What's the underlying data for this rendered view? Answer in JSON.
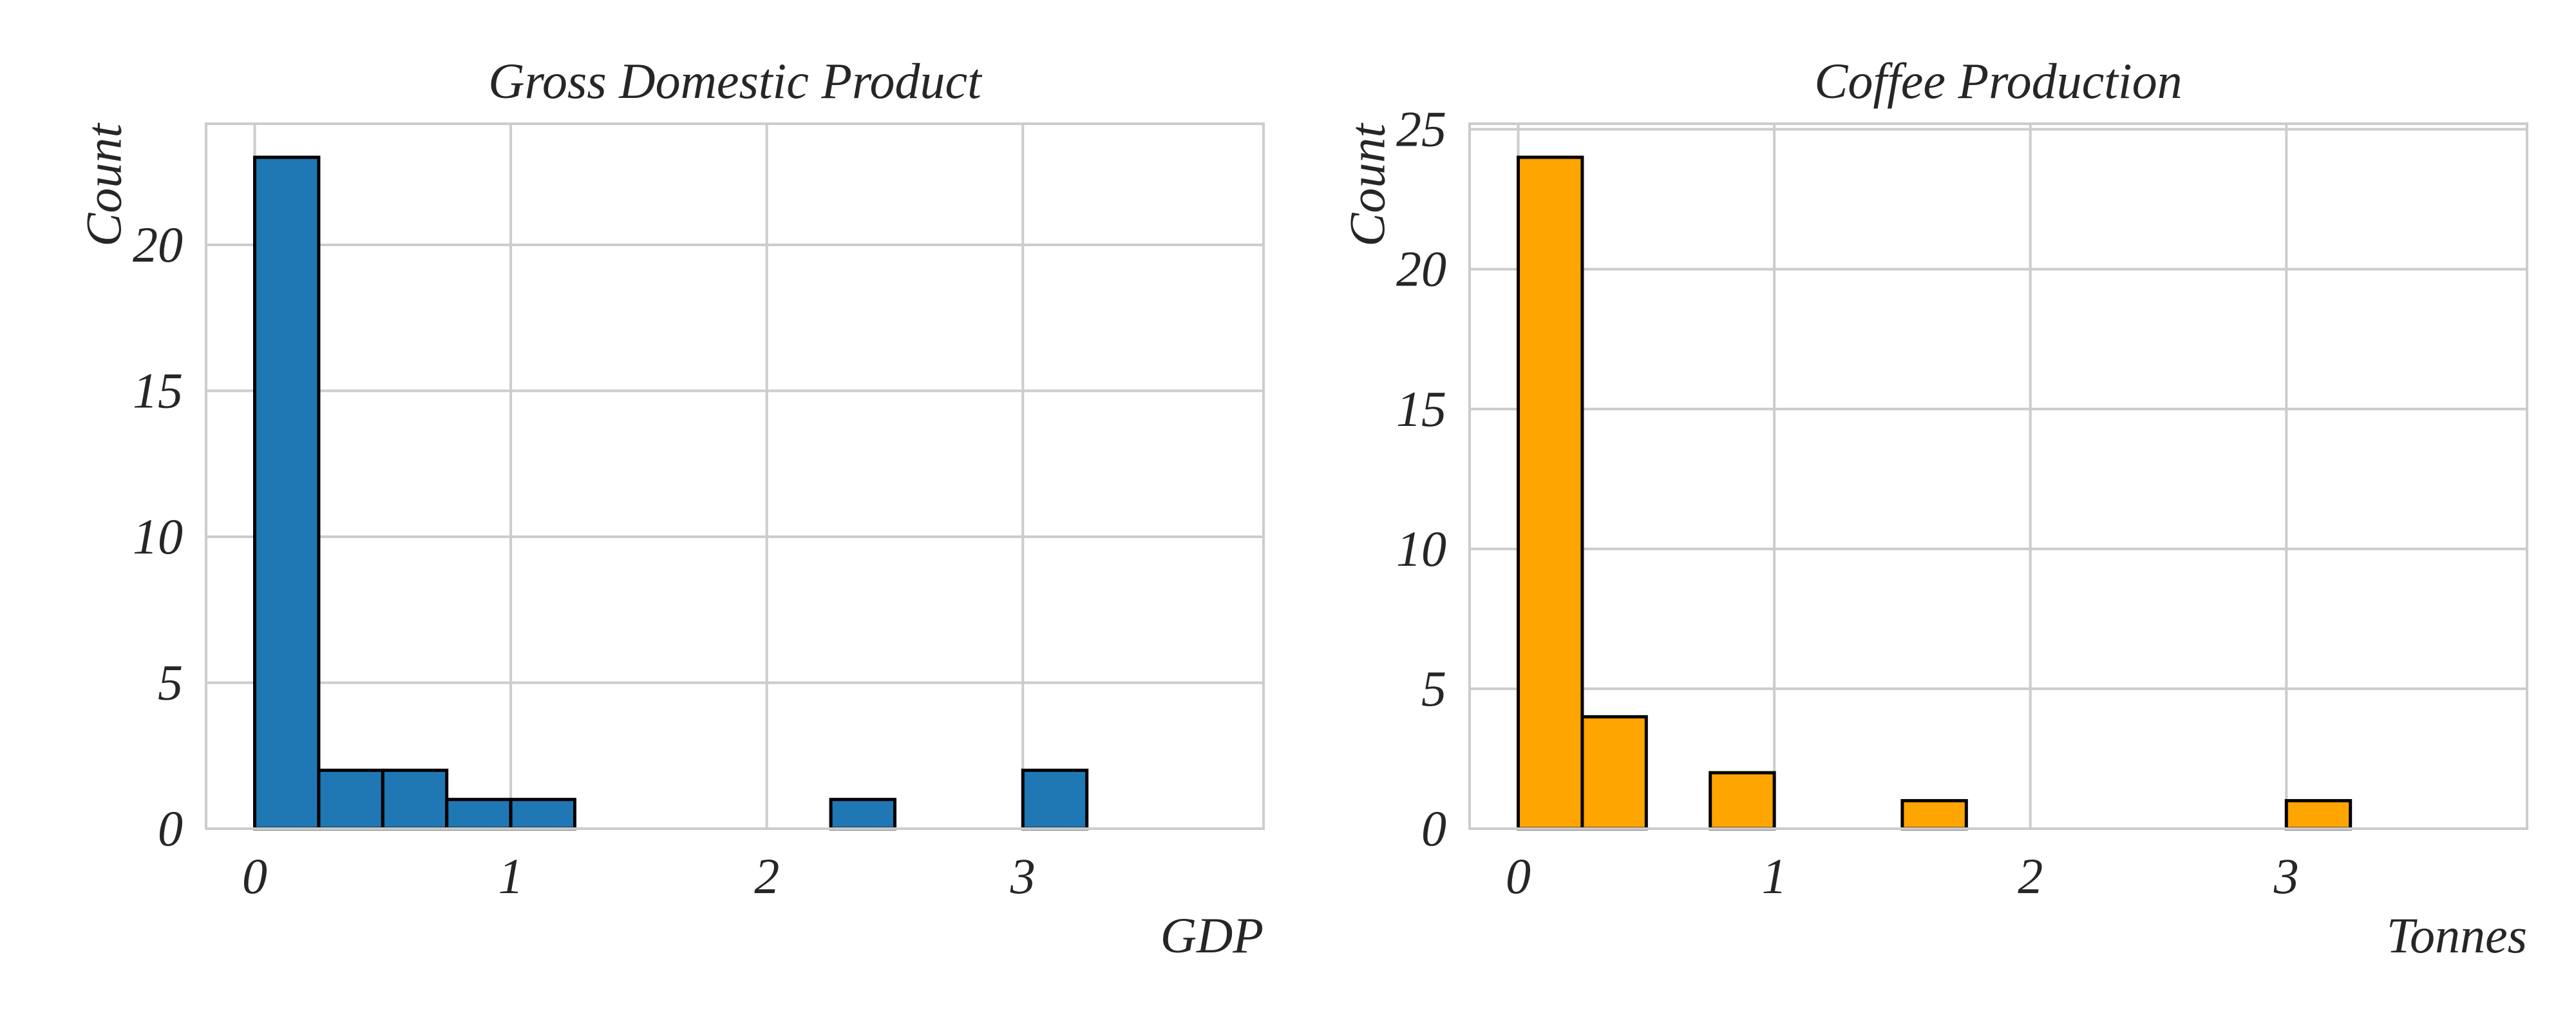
{
  "chart_data": [
    {
      "type": "bar",
      "title": "Gross Domestic Product",
      "xlabel": "GDP",
      "ylabel": "Count",
      "color": "#1f77b4",
      "bin_edges": [
        0,
        0.25,
        0.5,
        0.75,
        1.0,
        1.25,
        1.5,
        1.75,
        2.0,
        2.25,
        2.5,
        2.75,
        3.0,
        3.25,
        3.5,
        3.75
      ],
      "values": [
        23,
        2,
        2,
        1,
        1,
        0,
        0,
        0,
        0,
        1,
        0,
        0,
        2,
        0,
        0
      ],
      "xlim": [
        -0.19,
        3.94
      ],
      "ylim": [
        0,
        24.15
      ],
      "xticks": [
        0,
        1,
        2,
        3
      ],
      "yticks": [
        0,
        5,
        10,
        15,
        20
      ],
      "grid": true
    },
    {
      "type": "bar",
      "title": "Coffee Production",
      "xlabel": "Tonnes",
      "ylabel": "Count",
      "color": "#ffa500",
      "bin_edges": [
        0,
        0.25,
        0.5,
        0.75,
        1.0,
        1.25,
        1.5,
        1.75,
        2.0,
        2.25,
        2.5,
        2.75,
        3.0,
        3.25,
        3.5,
        3.75
      ],
      "values": [
        24,
        4,
        0,
        2,
        0,
        0,
        1,
        0,
        0,
        0,
        0,
        0,
        1,
        0,
        0
      ],
      "xlim": [
        -0.19,
        3.94
      ],
      "ylim": [
        0,
        25.2
      ],
      "xticks": [
        0,
        1,
        2,
        3
      ],
      "yticks": [
        0,
        5,
        10,
        15,
        20,
        25
      ],
      "grid": true
    }
  ]
}
